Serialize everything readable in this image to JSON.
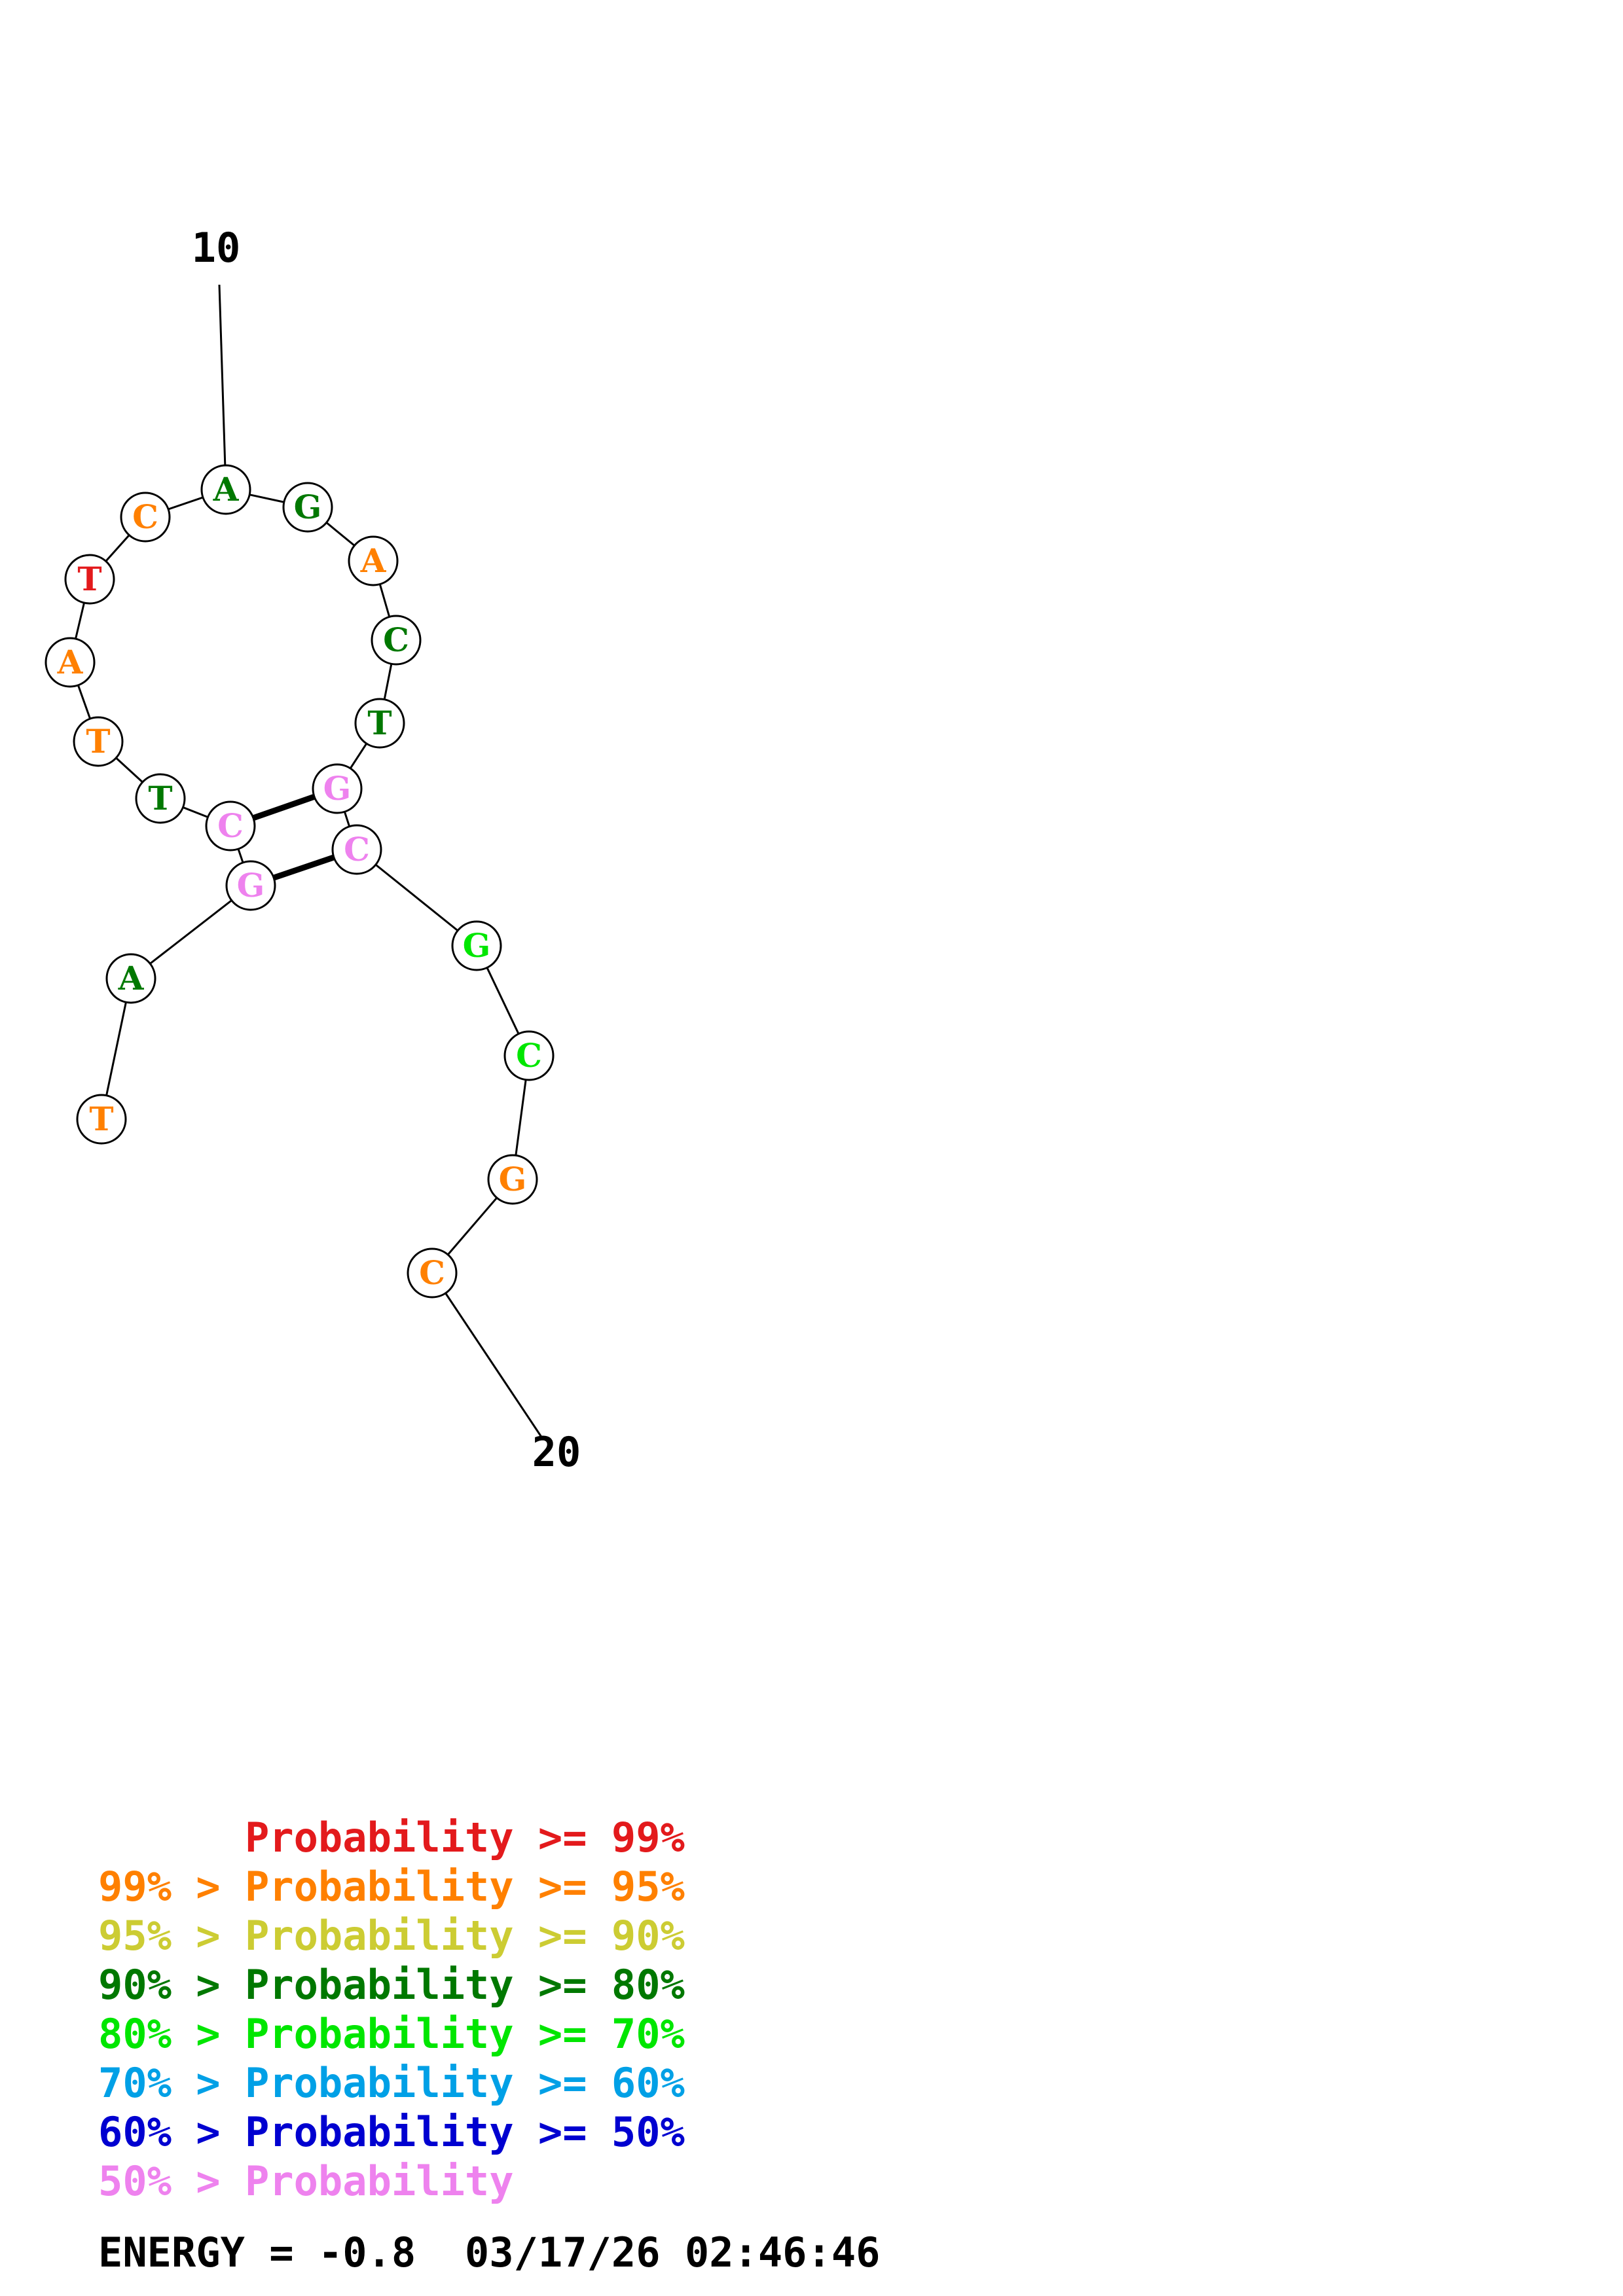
{
  "colors": {
    "p99": "#e31a1c",
    "p95": "#ff8000",
    "p90": "#cccc33",
    "p80": "#007800",
    "p70": "#00e600",
    "p60": "#00a0e6",
    "p50": "#0000d0",
    "below50": "#ee82ee"
  },
  "structure": {
    "bases": [
      {
        "index": 1,
        "letter": "T",
        "color_key": "p95"
      },
      {
        "index": 2,
        "letter": "A",
        "color_key": "p80"
      },
      {
        "index": 3,
        "letter": "G",
        "color_key": "below50"
      },
      {
        "index": 4,
        "letter": "C",
        "color_key": "below50"
      },
      {
        "index": 5,
        "letter": "T",
        "color_key": "p80"
      },
      {
        "index": 6,
        "letter": "T",
        "color_key": "p95"
      },
      {
        "index": 7,
        "letter": "A",
        "color_key": "p95"
      },
      {
        "index": 8,
        "letter": "T",
        "color_key": "p99"
      },
      {
        "index": 9,
        "letter": "C",
        "color_key": "p95"
      },
      {
        "index": 10,
        "letter": "A",
        "color_key": "p80"
      },
      {
        "index": 11,
        "letter": "G",
        "color_key": "p80"
      },
      {
        "index": 12,
        "letter": "A",
        "color_key": "p95"
      },
      {
        "index": 13,
        "letter": "C",
        "color_key": "p80"
      },
      {
        "index": 14,
        "letter": "T",
        "color_key": "p80"
      },
      {
        "index": 15,
        "letter": "G",
        "color_key": "below50"
      },
      {
        "index": 16,
        "letter": "C",
        "color_key": "below50"
      },
      {
        "index": 17,
        "letter": "G",
        "color_key": "p70"
      },
      {
        "index": 18,
        "letter": "C",
        "color_key": "p70"
      },
      {
        "index": 19,
        "letter": "G",
        "color_key": "p95"
      },
      {
        "index": 20,
        "letter": "C",
        "color_key": "p95"
      }
    ],
    "pairs": [
      [
        4,
        15
      ],
      [
        3,
        16
      ]
    ],
    "tick_labels": [
      {
        "base": 10,
        "text": "10"
      },
      {
        "base": 20,
        "text": "20"
      }
    ]
  },
  "legend": [
    {
      "prefix": "",
      "label": "Probability",
      "suffix": ">= 99%",
      "color_key": "p99"
    },
    {
      "prefix": "99% >",
      "label": "Probability",
      "suffix": ">= 95%",
      "color_key": "p95"
    },
    {
      "prefix": "95% >",
      "label": "Probability",
      "suffix": ">= 90%",
      "color_key": "p90"
    },
    {
      "prefix": "90% >",
      "label": "Probability",
      "suffix": ">= 80%",
      "color_key": "p80"
    },
    {
      "prefix": "80% >",
      "label": "Probability",
      "suffix": ">= 70%",
      "color_key": "p70"
    },
    {
      "prefix": "70% >",
      "label": "Probability",
      "suffix": ">= 60%",
      "color_key": "p60"
    },
    {
      "prefix": "60% >",
      "label": "Probability",
      "suffix": ">= 50%",
      "color_key": "p50"
    },
    {
      "prefix": "50% >",
      "label": "Probability",
      "suffix": "",
      "color_key": "below50"
    }
  ],
  "footer": {
    "energy_text": "ENERGY = -0.8",
    "timestamp": "03/17/26 02:46:46"
  }
}
